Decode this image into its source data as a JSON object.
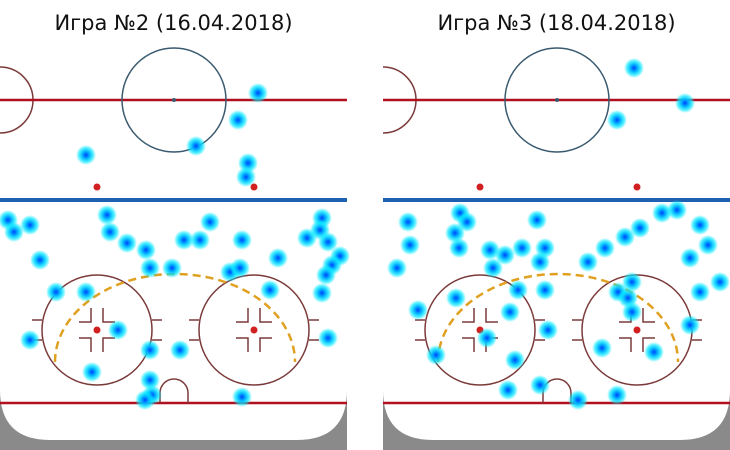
{
  "chart_data": [
    {
      "type": "scatter",
      "title": "Игра №2 (16.04.2018)",
      "xlim": [
        0,
        347
      ],
      "ylim": [
        450,
        0
      ],
      "color": "#00d8ff",
      "x": [
        258,
        238,
        196,
        86,
        248,
        246,
        8,
        14,
        30,
        107,
        110,
        127,
        146,
        210,
        200,
        184,
        242,
        150,
        40,
        172,
        230,
        240,
        278,
        307,
        322,
        320,
        328,
        340,
        332,
        326,
        322,
        270,
        56,
        86,
        118,
        30,
        150,
        180,
        328,
        92,
        150,
        152,
        145,
        242
      ],
      "y": [
        93,
        120,
        146,
        155,
        163,
        177,
        220,
        232,
        225,
        215,
        232,
        243,
        250,
        222,
        240,
        240,
        240,
        268,
        260,
        268,
        272,
        268,
        258,
        238,
        218,
        230,
        242,
        256,
        265,
        275,
        293,
        290,
        292,
        292,
        330,
        340,
        350,
        350,
        338,
        372,
        380,
        395,
        400,
        397
      ]
    },
    {
      "type": "scatter",
      "title": "Игра №3 (18.04.2018)",
      "xlim": [
        0,
        347
      ],
      "ylim": [
        450,
        0
      ],
      "color": "#00d8ff",
      "x": [
        251,
        302,
        234,
        25,
        77,
        84,
        154,
        72,
        27,
        76,
        107,
        122,
        139,
        162,
        157,
        14,
        110,
        279,
        294,
        257,
        242,
        222,
        205,
        317,
        325,
        307,
        337,
        317,
        249,
        235,
        245,
        249,
        162,
        135,
        73,
        127,
        104,
        132,
        165,
        219,
        271,
        307,
        53,
        35,
        125,
        157,
        195,
        234
      ],
      "y": [
        68,
        103,
        120,
        222,
        213,
        222,
        220,
        233,
        245,
        248,
        250,
        255,
        248,
        248,
        262,
        268,
        268,
        213,
        210,
        228,
        237,
        248,
        262,
        225,
        245,
        258,
        282,
        292,
        282,
        292,
        298,
        312,
        290,
        290,
        298,
        312,
        338,
        360,
        330,
        348,
        352,
        325,
        355,
        310,
        390,
        385,
        400,
        395
      ]
    }
  ]
}
